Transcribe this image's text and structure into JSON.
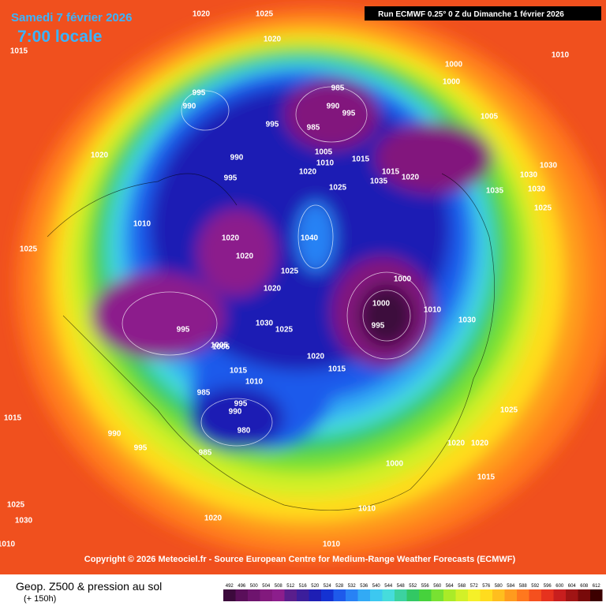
{
  "header": {
    "date": "Samedi 7 février 2026",
    "time": "7:00 locale",
    "run": "Run ECMWF 0.25° 0 Z du Dimanche 1 février 2026"
  },
  "footer": {
    "copyright": "Copyright © 2026 Meteociel.fr - Source European Centre for Medium-Range Weather Forecasts (ECMWF)",
    "product": "Geop. Z500 & pression au sol",
    "lead": "(+ 150h)"
  },
  "legend": {
    "values": [
      492,
      496,
      500,
      504,
      508,
      512,
      516,
      520,
      524,
      528,
      532,
      536,
      540,
      544,
      548,
      552,
      556,
      560,
      564,
      568,
      572,
      576,
      580,
      584,
      588,
      592,
      596,
      600,
      604,
      608,
      612
    ],
    "colors": [
      "#3c0a3c",
      "#5a0f5a",
      "#6e146e",
      "#82197d",
      "#8c1e8c",
      "#5a1e8c",
      "#3c1e9b",
      "#1e1eb4",
      "#1432d2",
      "#1e5aeb",
      "#2882f5",
      "#32aaf5",
      "#3cc8f0",
      "#46dcdc",
      "#3cd2a0",
      "#32c864",
      "#46d23c",
      "#78e132",
      "#aaeb28",
      "#d2f028",
      "#f5f028",
      "#ffdc1e",
      "#ffbe1e",
      "#ff9b1e",
      "#ff781e",
      "#f5501e",
      "#e6321e",
      "#c81e1e",
      "#a01414",
      "#780a0a",
      "#3c0000"
    ]
  },
  "pressure_labels": [
    1025,
    1020,
    1015,
    1020,
    1010,
    995,
    990,
    985,
    990,
    995,
    1000,
    1000,
    995,
    1005,
    985,
    990,
    995,
    1005,
    1010,
    1015,
    1015,
    1020,
    1020,
    1025,
    1030,
    1035,
    1040,
    1035,
    1030,
    1020,
    1020,
    1025,
    995,
    1005,
    1000,
    1000,
    995,
    1010,
    1030,
    1020,
    1015,
    1010,
    1005,
    995,
    990,
    985,
    980,
    985,
    995,
    990,
    1020,
    1010,
    1020,
    1015,
    1025,
    1025,
    1030,
    1030,
    1025,
    1020,
    1010,
    1015,
    1010,
    1020,
    1000,
    1015,
    1025,
    1030,
    1025,
    1020,
    1010
  ]
}
